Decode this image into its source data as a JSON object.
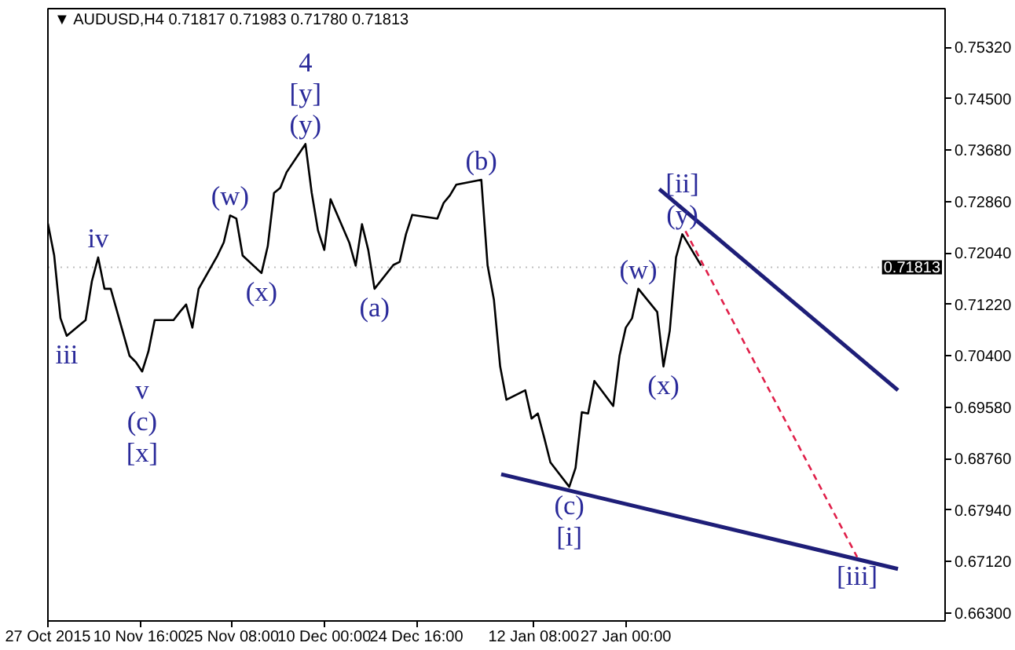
{
  "chart_data": {
    "type": "line",
    "title": "▼ AUDUSD,H4  0.71817 0.71983 0.71780 0.71813",
    "x": [
      "2015-10-27",
      "2015-10-28",
      "2015-10-29",
      "2015-10-30",
      "2015-11-02",
      "2015-11-03",
      "2015-11-04",
      "2015-11-05",
      "2015-11-06",
      "2015-11-09",
      "2015-11-10",
      "2015-11-11",
      "2015-11-12",
      "2015-11-13",
      "2015-11-16",
      "2015-11-17",
      "2015-11-18",
      "2015-11-19",
      "2015-11-20",
      "2015-11-23",
      "2015-11-24",
      "2015-11-25",
      "2015-11-26",
      "2015-11-27",
      "2015-11-30",
      "2015-12-01",
      "2015-12-02",
      "2015-12-03",
      "2015-12-04",
      "2015-12-07",
      "2015-12-08",
      "2015-12-09",
      "2015-12-10",
      "2015-12-11",
      "2015-12-14",
      "2015-12-15",
      "2015-12-16",
      "2015-12-17",
      "2015-12-18",
      "2015-12-21",
      "2015-12-22",
      "2015-12-23",
      "2015-12-24",
      "2015-12-28",
      "2015-12-29",
      "2015-12-30",
      "2015-12-31",
      "2016-01-04",
      "2016-01-05",
      "2016-01-06",
      "2016-01-07",
      "2016-01-08",
      "2016-01-11",
      "2016-01-12",
      "2016-01-13",
      "2016-01-14",
      "2016-01-15",
      "2016-01-18",
      "2016-01-19",
      "2016-01-20",
      "2016-01-21",
      "2016-01-22",
      "2016-01-25",
      "2016-01-26",
      "2016-01-27",
      "2016-01-28",
      "2016-01-29",
      "2016-02-01",
      "2016-02-02",
      "2016-02-03",
      "2016-02-04",
      "2016-02-05",
      "2016-02-08"
    ],
    "series": [
      {
        "color": "#000000",
        "values": [
          0.7251,
          0.72,
          0.71,
          0.7072,
          0.7097,
          0.7159,
          0.7197,
          0.7147,
          0.7147,
          0.704,
          0.703,
          0.7015,
          0.7047,
          0.7097,
          0.7097,
          0.711,
          0.7122,
          0.7085,
          0.7147,
          0.72,
          0.7221,
          0.7264,
          0.7259,
          0.72,
          0.7172,
          0.7215,
          0.73,
          0.7308,
          0.7333,
          0.7378,
          0.73,
          0.724,
          0.7209,
          0.729,
          0.722,
          0.7184,
          0.725,
          0.7209,
          0.7147,
          0.7185,
          0.719,
          0.7234,
          0.7265,
          0.7259,
          0.7284,
          0.7296,
          0.7313,
          0.7321,
          0.7184,
          0.713,
          0.7023,
          0.697,
          0.6985,
          0.694,
          0.6948,
          0.691,
          0.687,
          0.6831,
          0.6861,
          0.695,
          0.6948,
          0.7,
          0.696,
          0.704,
          0.7085,
          0.71,
          0.7147,
          0.711,
          0.7023,
          0.708,
          0.7197,
          0.7234,
          0.7184
        ]
      },
      {
        "color": "#1e1e78",
        "x": [
          "2016-02-01T08:00",
          "2016-03-10T08:00"
        ],
        "values": [
          0.7306,
          0.6985
        ]
      },
      {
        "color": "#1e1e78",
        "x": [
          "2016-01-07T04:00",
          "2016-03-10T08:00"
        ],
        "values": [
          0.6851,
          0.67
        ]
      },
      {
        "color": "#e0204a",
        "x": [
          "2016-02-05T12:00",
          "2016-03-03T20:00"
        ],
        "values": [
          0.7239,
          0.6719
        ],
        "line_style": "dashed"
      }
    ],
    "xlim": [
      "2015-10-27",
      "2016-03-17T20:00"
    ],
    "xticks": [
      {
        "value": "2015-10-27",
        "label": "27 Oct 2015"
      },
      {
        "value": "2015-11-10T16:00",
        "label": "10 Nov 16:00"
      },
      {
        "value": "2015-11-25T08:00",
        "label": "25 Nov 08:00"
      },
      {
        "value": "2015-12-10",
        "label": "10 Dec 00:00"
      },
      {
        "value": "2015-12-24T16:00",
        "label": "24 Dec 16:00"
      },
      {
        "value": "2016-01-12T08:00",
        "label": "12 Jan 08:00"
      },
      {
        "value": "2016-01-27",
        "label": "27 Jan 00:00"
      }
    ],
    "ylim": [
      0.6617,
      0.7594
    ],
    "yticks": [
      {
        "value": 0.7532,
        "label": "0.75320"
      },
      {
        "value": 0.745,
        "label": "0.74500"
      },
      {
        "value": 0.7368,
        "label": "0.73680"
      },
      {
        "value": 0.7286,
        "label": "0.72860"
      },
      {
        "value": 0.7204,
        "label": "0.72040"
      },
      {
        "value": 0.7122,
        "label": "0.71220"
      },
      {
        "value": 0.704,
        "label": "0.70400"
      },
      {
        "value": 0.6958,
        "label": "0.69580"
      },
      {
        "value": 0.6876,
        "label": "0.68760"
      },
      {
        "value": 0.6794,
        "label": "0.67940"
      },
      {
        "value": 0.6712,
        "label": "0.67120"
      },
      {
        "value": 0.663,
        "label": "0.66300"
      }
    ],
    "ref_lines": [
      {
        "axis": "y",
        "value": 0.71813,
        "label": "0.71813",
        "color": "#000000"
      }
    ],
    "annotations": [
      {
        "text": "4",
        "x": "2015-12-07",
        "y": 0.7378
      },
      {
        "text": "[y]",
        "x": "2015-12-07",
        "y": 0.7378
      },
      {
        "text": "(y)",
        "x": "2015-12-07",
        "y": 0.7378
      },
      {
        "text": "(w)",
        "x": "2015-11-25",
        "y": 0.7264
      },
      {
        "text": "(x)",
        "x": "2015-11-30",
        "y": 0.7172
      },
      {
        "text": "iv",
        "x": "2015-11-04",
        "y": 0.7197
      },
      {
        "text": "iii",
        "x": "2015-10-30",
        "y": 0.7072
      },
      {
        "text": "v",
        "x": "2015-11-11",
        "y": 0.7015
      },
      {
        "text": "(c)",
        "x": "2015-11-11",
        "y": 0.7015
      },
      {
        "text": "[x]",
        "x": "2015-11-11",
        "y": 0.7015
      },
      {
        "text": "(a)",
        "x": "2015-12-18",
        "y": 0.7147
      },
      {
        "text": "(b)",
        "x": "2016-01-04",
        "y": 0.7321
      },
      {
        "text": "(w)",
        "x": "2016-01-29",
        "y": 0.7147
      },
      {
        "text": "(x)",
        "x": "2016-02-02",
        "y": 0.7023
      },
      {
        "text": "[ii]",
        "x": "2016-02-05",
        "y": 0.7234
      },
      {
        "text": "(y)",
        "x": "2016-02-05",
        "y": 0.7234
      },
      {
        "text": "(c)",
        "x": "2016-01-18",
        "y": 0.6831
      },
      {
        "text": "[i]",
        "x": "2016-01-18",
        "y": 0.6831
      },
      {
        "text": "[iii]",
        "x": "2016-03-03T20:00",
        "y": 0.6719
      }
    ],
    "grid": false
  }
}
